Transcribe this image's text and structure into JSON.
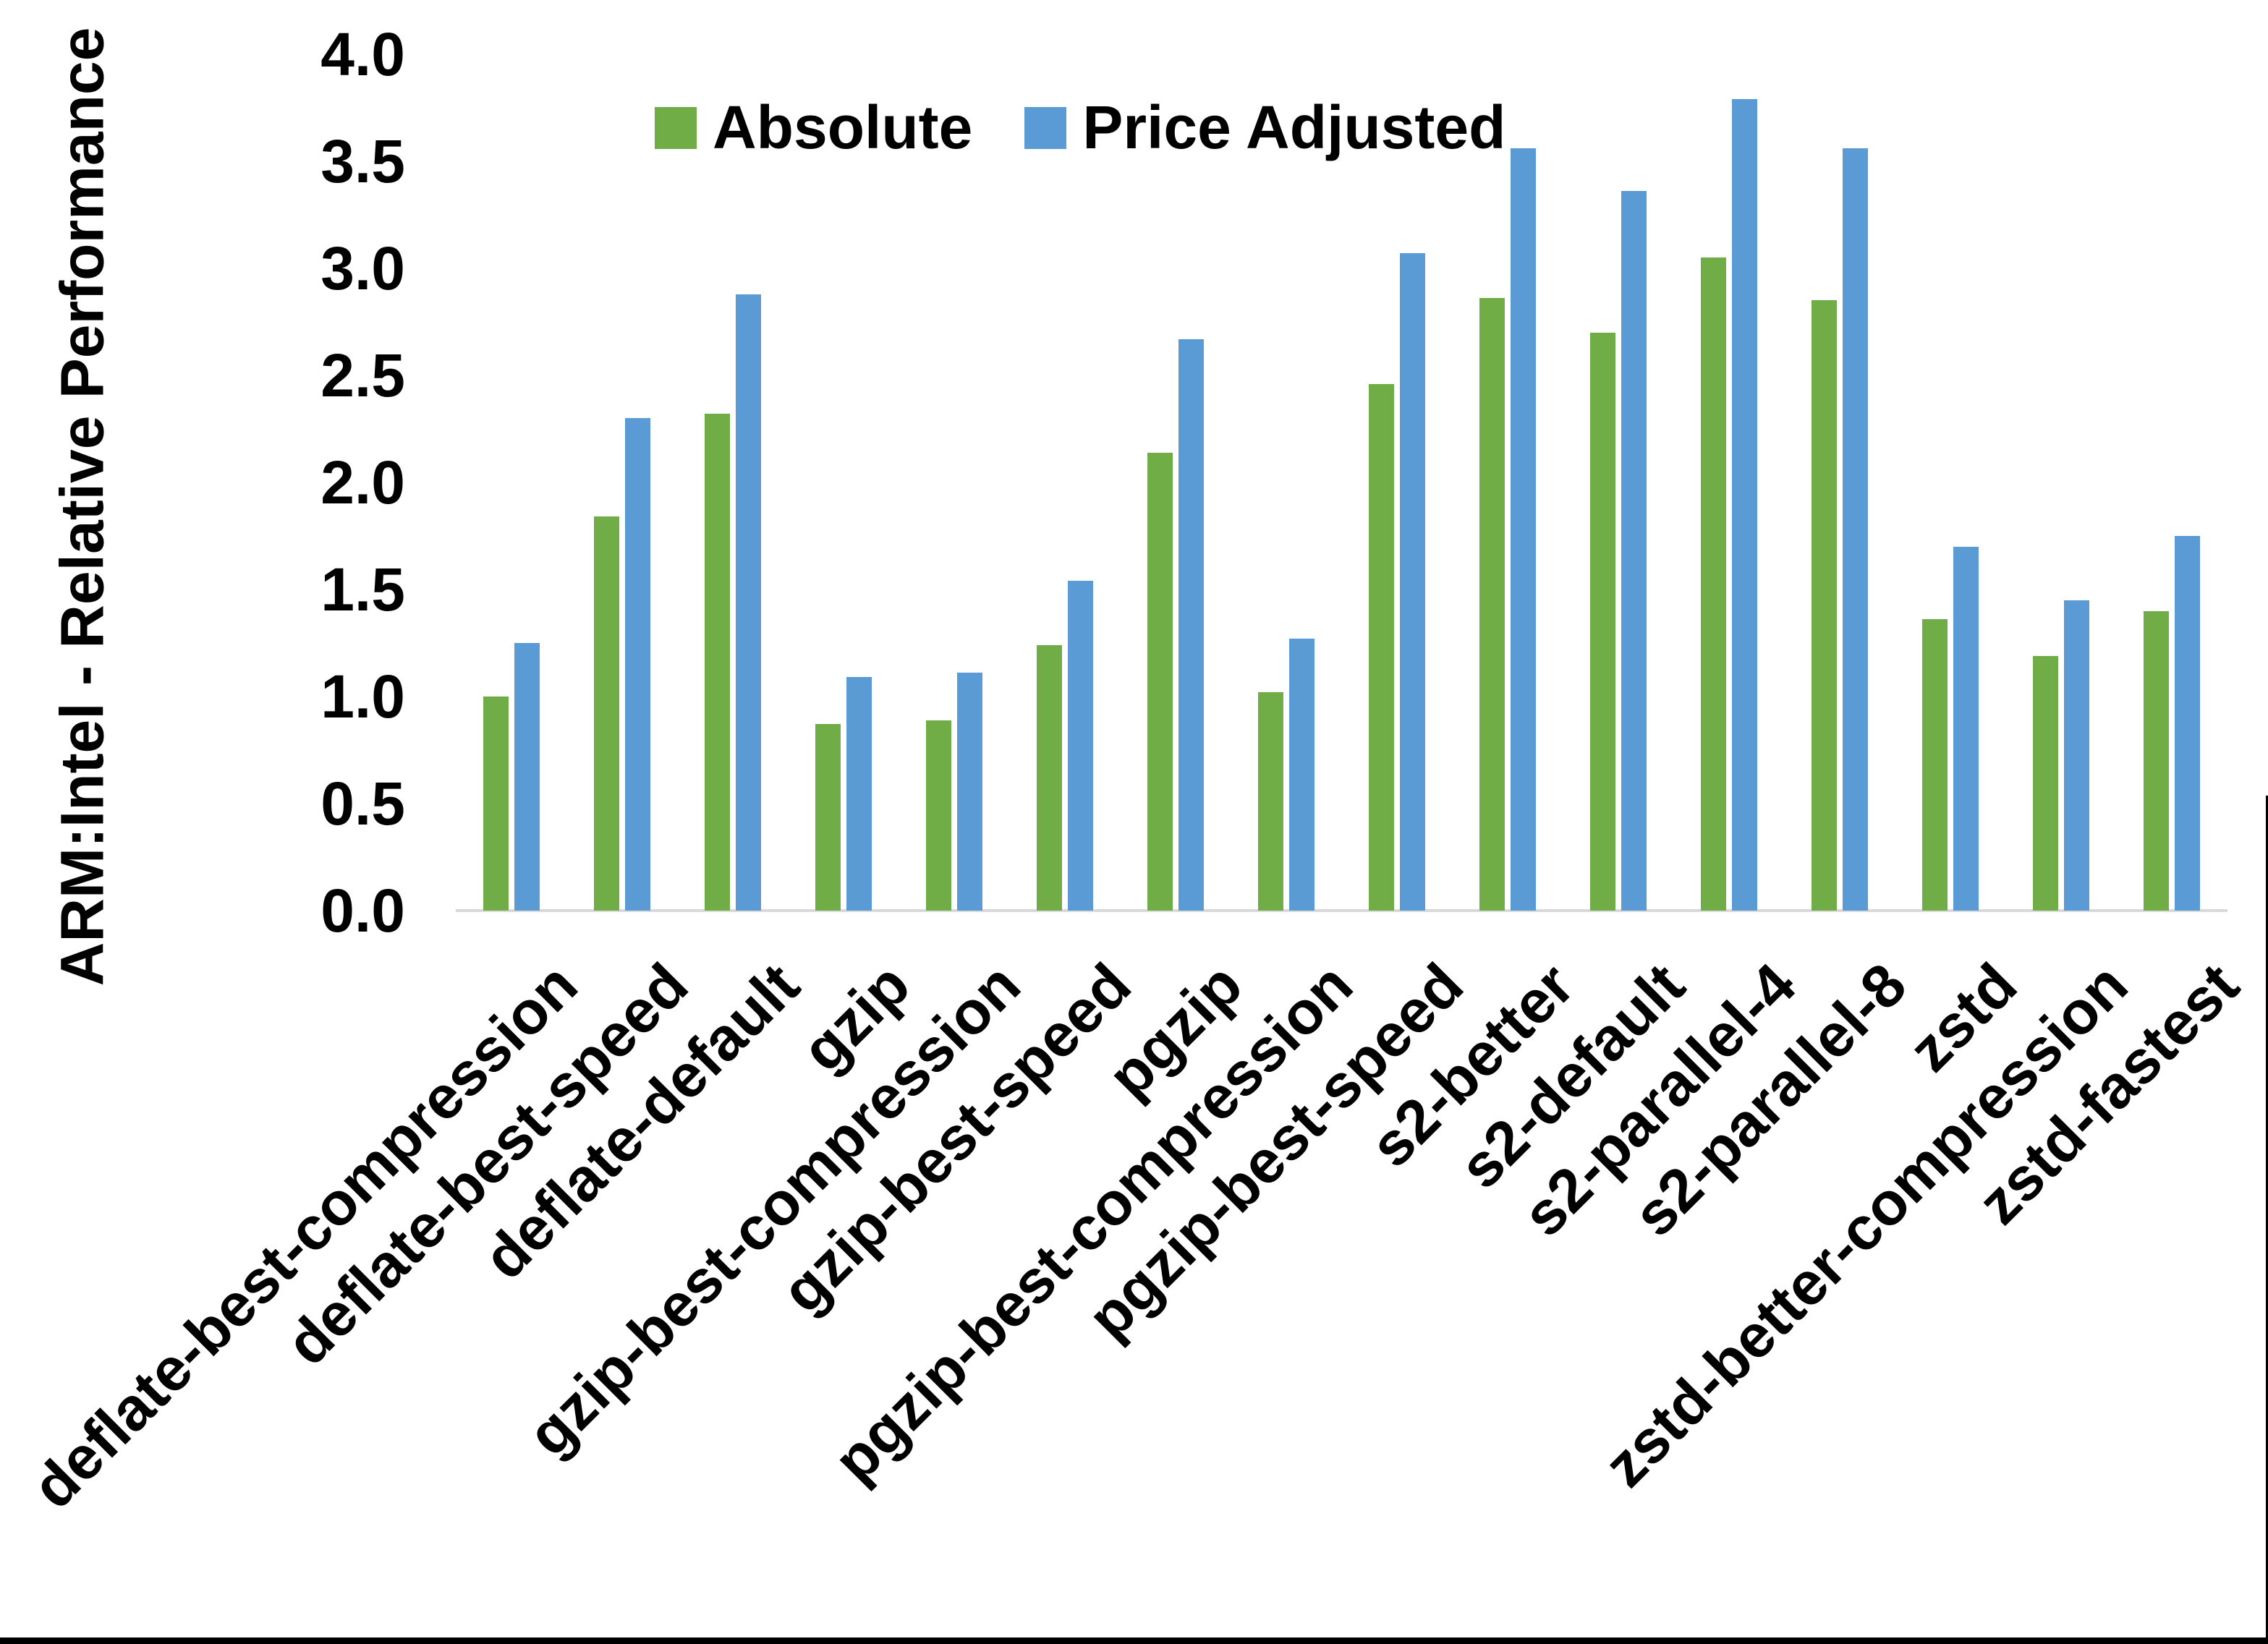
{
  "chart_data": {
    "type": "bar",
    "title": "",
    "ylabel": "ARM:Intel - Relative Performance",
    "xlabel": "",
    "ylim": [
      0.0,
      4.0
    ],
    "ytick_step": 0.5,
    "yticks": [
      "0.0",
      "0.5",
      "1.0",
      "1.5",
      "2.0",
      "2.5",
      "3.0",
      "3.5",
      "4.0"
    ],
    "grid": false,
    "legend_position": "top-center",
    "categories": [
      "deflate-best-compression",
      "deflate-best-speed",
      "deflate-default",
      "gzip",
      "gzip-best-compression",
      "gzip-best-speed",
      "pgzip",
      "pgzip-best-compression",
      "pgzip-best-speed",
      "s2-better",
      "s2-default",
      "s2-parallel-4",
      "s2-parallel-8",
      "zstd",
      "zstd-better-compression",
      "zstd-fastest"
    ],
    "series": [
      {
        "name": "Absolute",
        "color": "#70AD47",
        "values": [
          1.0,
          1.84,
          2.32,
          0.87,
          0.89,
          1.24,
          2.14,
          1.02,
          2.46,
          2.86,
          2.7,
          3.05,
          2.85,
          1.36,
          1.19,
          1.4
        ]
      },
      {
        "name": "Price Adjusted",
        "color": "#5B9BD5",
        "values": [
          1.25,
          2.3,
          2.88,
          1.09,
          1.11,
          1.54,
          2.67,
          1.27,
          3.07,
          3.56,
          3.36,
          3.79,
          3.56,
          1.7,
          1.45,
          1.75
        ]
      }
    ]
  },
  "colors": {
    "axis_line": "#D9D9D9",
    "text": "#000000",
    "frame": "#000000"
  }
}
